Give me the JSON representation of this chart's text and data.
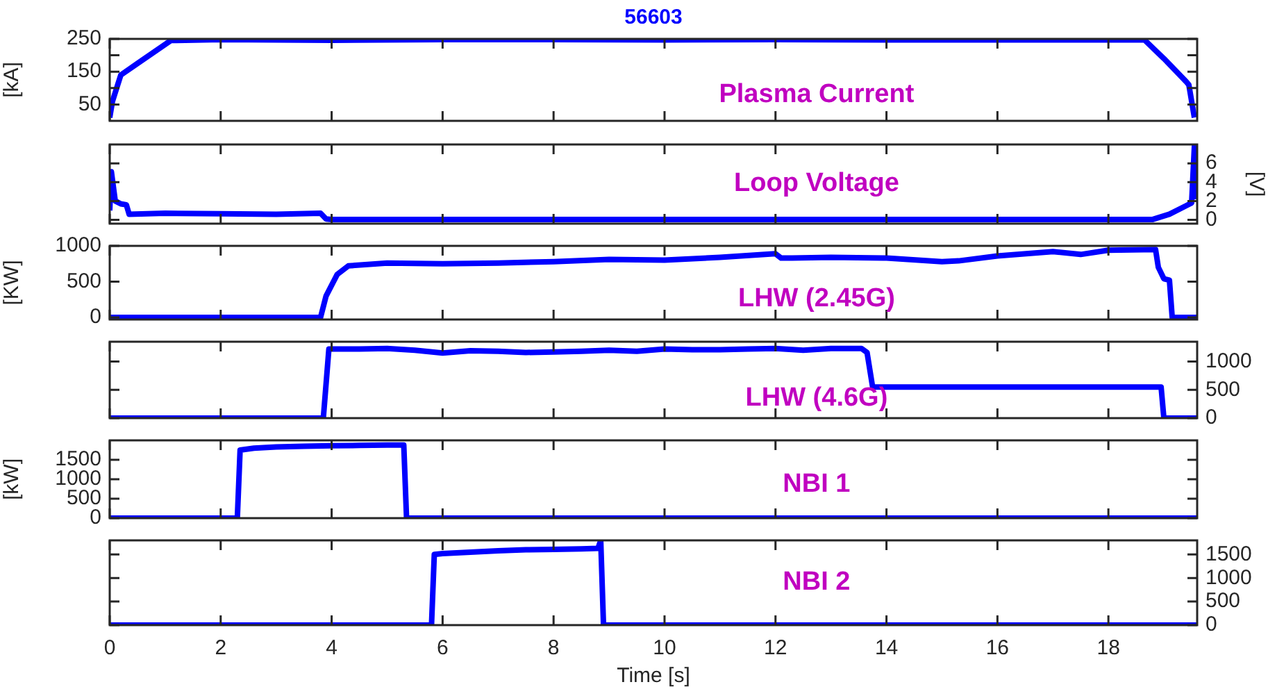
{
  "chart_data": [
    {
      "type": "line",
      "title": "56603",
      "ylabel": "[kA]",
      "annotations": [
        "Plasma Current"
      ],
      "marker": "none",
      "tick_labels": "y",
      "xlim": [
        0,
        19.6
      ],
      "xticks": [
        0,
        2,
        4,
        6,
        8,
        10,
        12,
        14,
        16,
        18
      ],
      "ylim": [
        0,
        250
      ],
      "yticks": [
        50,
        {
          "value": 100,
          "label": null
        },
        150,
        {
          "value": 200,
          "label": null
        },
        250
      ],
      "series": [
        {
          "color": "#0000ff",
          "x": [
            0,
            0.05,
            0.2,
            0.5,
            1.1,
            2,
            4,
            6,
            8,
            10,
            12,
            14,
            16,
            18,
            18.65,
            19.0,
            19.4,
            19.45,
            19.55
          ],
          "values": [
            10,
            60,
            140,
            175,
            245,
            248,
            246,
            248,
            248,
            247,
            248,
            247,
            247,
            247,
            247,
            190,
            120,
            110,
            10
          ]
        }
      ]
    },
    {
      "type": "line",
      "ylabel": "[V]",
      "annotations": [
        "Loop Voltage"
      ],
      "marker": "none",
      "tick_labels": "y",
      "xlim": [
        0,
        19.6
      ],
      "xticks": [
        0,
        2,
        4,
        6,
        8,
        10,
        12,
        14,
        16,
        18
      ],
      "ylim": [
        -0.4,
        8
      ],
      "yticks": [
        0,
        2,
        4,
        6
      ],
      "series": [
        {
          "color": "#0000ff",
          "x": [
            0,
            0.03,
            0.1,
            0.2,
            0.3,
            0.35,
            1,
            2,
            3,
            3.8,
            3.9,
            4,
            6,
            8,
            10,
            12,
            14,
            16,
            18,
            18.8,
            19.1,
            19.4,
            19.5,
            19.55,
            19.6
          ],
          "values": [
            1,
            5.1,
            2,
            1.7,
            1.6,
            0.6,
            0.7,
            0.65,
            0.6,
            0.7,
            0.1,
            0.05,
            0.05,
            0.05,
            0.05,
            0.05,
            0.05,
            0.05,
            0.05,
            0.05,
            0.6,
            1.5,
            1.8,
            7.8,
            2.2
          ]
        }
      ]
    },
    {
      "type": "line",
      "ylabel": "[KW]",
      "annotations": [
        "LHW (2.45G)"
      ],
      "marker": "none",
      "tick_labels": "y",
      "xlim": [
        0,
        19.6
      ],
      "xticks": [
        0,
        2,
        4,
        6,
        8,
        10,
        12,
        14,
        16,
        18
      ],
      "ylim": [
        -30,
        1000
      ],
      "yticks": [
        0,
        500,
        1000
      ],
      "series": [
        {
          "color": "#0000ff",
          "x": [
            0,
            3.8,
            3.9,
            4.1,
            4.3,
            5,
            6,
            7,
            8,
            9,
            10,
            11,
            12,
            12.1,
            12.3,
            13,
            14,
            15,
            15.3,
            16,
            17,
            17.5,
            18,
            18.85,
            18.9,
            19.0,
            19.1,
            19.15,
            19.6
          ],
          "values": [
            0,
            0,
            300,
            600,
            720,
            760,
            750,
            760,
            780,
            810,
            800,
            840,
            890,
            830,
            830,
            840,
            830,
            780,
            790,
            860,
            920,
            880,
            940,
            950,
            700,
            540,
            520,
            0,
            0
          ]
        }
      ]
    },
    {
      "type": "line",
      "annotations": [
        "LHW (4.6G)"
      ],
      "marker": "none",
      "tick_labels": "y",
      "xlim": [
        0,
        19.6
      ],
      "xticks": [
        0,
        2,
        4,
        6,
        8,
        10,
        12,
        14,
        16,
        18
      ],
      "ylim": [
        0,
        1350
      ],
      "yticks": [
        0,
        500,
        1000
      ],
      "series": [
        {
          "color": "#0000ff",
          "x": [
            0,
            3.85,
            3.95,
            4.5,
            5,
            5.5,
            6,
            6.5,
            7,
            7.5,
            8,
            8.5,
            9,
            9.5,
            10,
            10.5,
            11,
            11.5,
            12,
            12.5,
            13,
            13.55,
            13.65,
            13.75,
            14,
            16,
            18,
            18.95,
            19.0,
            19.6
          ],
          "values": [
            0,
            0,
            1220,
            1220,
            1230,
            1200,
            1150,
            1190,
            1180,
            1160,
            1170,
            1180,
            1200,
            1180,
            1220,
            1210,
            1210,
            1220,
            1230,
            1200,
            1230,
            1230,
            1160,
            550,
            550,
            550,
            550,
            550,
            0,
            0
          ]
        }
      ]
    },
    {
      "type": "line",
      "ylabel": "[kW]",
      "annotations": [
        "NBI 1"
      ],
      "marker": "none",
      "tick_labels": "y",
      "xlim": [
        0,
        19.6
      ],
      "xticks": [
        0,
        2,
        4,
        6,
        8,
        10,
        12,
        14,
        16,
        18
      ],
      "ylim": [
        0,
        2000
      ],
      "yticks": [
        0,
        500,
        1000,
        1500
      ],
      "series": [
        {
          "color": "#0000ff",
          "x": [
            0,
            2.3,
            2.35,
            2.6,
            3,
            3.5,
            4,
            4.5,
            5,
            5.3,
            5.35,
            19.6
          ],
          "values": [
            0,
            0,
            1750,
            1800,
            1830,
            1850,
            1860,
            1870,
            1880,
            1880,
            0,
            0
          ]
        }
      ]
    },
    {
      "type": "line",
      "xlabel": "Time [s]",
      "annotations": [
        "NBI 2"
      ],
      "marker": "none",
      "xlim": [
        0,
        19.6
      ],
      "xticks": [
        0,
        2,
        4,
        6,
        8,
        10,
        12,
        14,
        16,
        18
      ],
      "ylim": [
        0,
        1800
      ],
      "yticks": [
        0,
        500,
        1000,
        1500
      ],
      "series": [
        {
          "color": "#0000ff",
          "x": [
            0,
            5.8,
            5.85,
            6,
            6.5,
            7,
            7.5,
            8,
            8.5,
            8.8,
            8.85,
            8.9,
            19.6
          ],
          "values": [
            0,
            0,
            1500,
            1520,
            1550,
            1580,
            1600,
            1610,
            1620,
            1630,
            1800,
            0,
            0
          ]
        }
      ]
    }
  ]
}
